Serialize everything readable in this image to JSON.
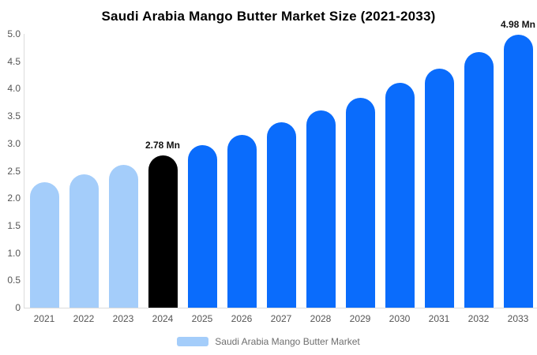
{
  "chart_data": {
    "type": "bar",
    "title": "Saudi Arabia Mango Butter Market Size (2021-2033)",
    "legend": "Saudi Arabia Mango Butter Market",
    "unit": "Mn",
    "categories": [
      "2021",
      "2022",
      "2023",
      "2024",
      "2025",
      "2026",
      "2027",
      "2028",
      "2029",
      "2030",
      "2031",
      "2032",
      "2033"
    ],
    "values": [
      2.29,
      2.44,
      2.61,
      2.78,
      2.97,
      3.16,
      3.38,
      3.6,
      3.84,
      4.1,
      4.37,
      4.67,
      4.98
    ],
    "xlabel": "",
    "ylabel": "",
    "ylim": [
      0,
      5
    ],
    "ytick_labels": [
      "5.0",
      "4.5",
      "4.0",
      "3.5",
      "3.0",
      "2.5",
      "2.0",
      "1.5",
      "1.0",
      "0.5",
      "0"
    ],
    "ytick_values": [
      5,
      4.5,
      4,
      3.5,
      3,
      2.5,
      2,
      1.5,
      1,
      0.5,
      0
    ],
    "grid": false,
    "legend_position": "bottom",
    "colors": {
      "historical": "#a4cdfa",
      "current": "#000000",
      "forecast": "#0a6cfc",
      "axis_line": "#dcdcdc",
      "tick_text": "#555555",
      "legend_text": "#6e6e6e"
    },
    "bar_color_keys": [
      "historical",
      "historical",
      "historical",
      "current",
      "forecast",
      "forecast",
      "forecast",
      "forecast",
      "forecast",
      "forecast",
      "forecast",
      "forecast",
      "forecast"
    ],
    "annotations": [
      {
        "category": "2024",
        "text": "2.78 Mn"
      },
      {
        "category": "2033",
        "text": "4.98 Mn"
      }
    ]
  }
}
